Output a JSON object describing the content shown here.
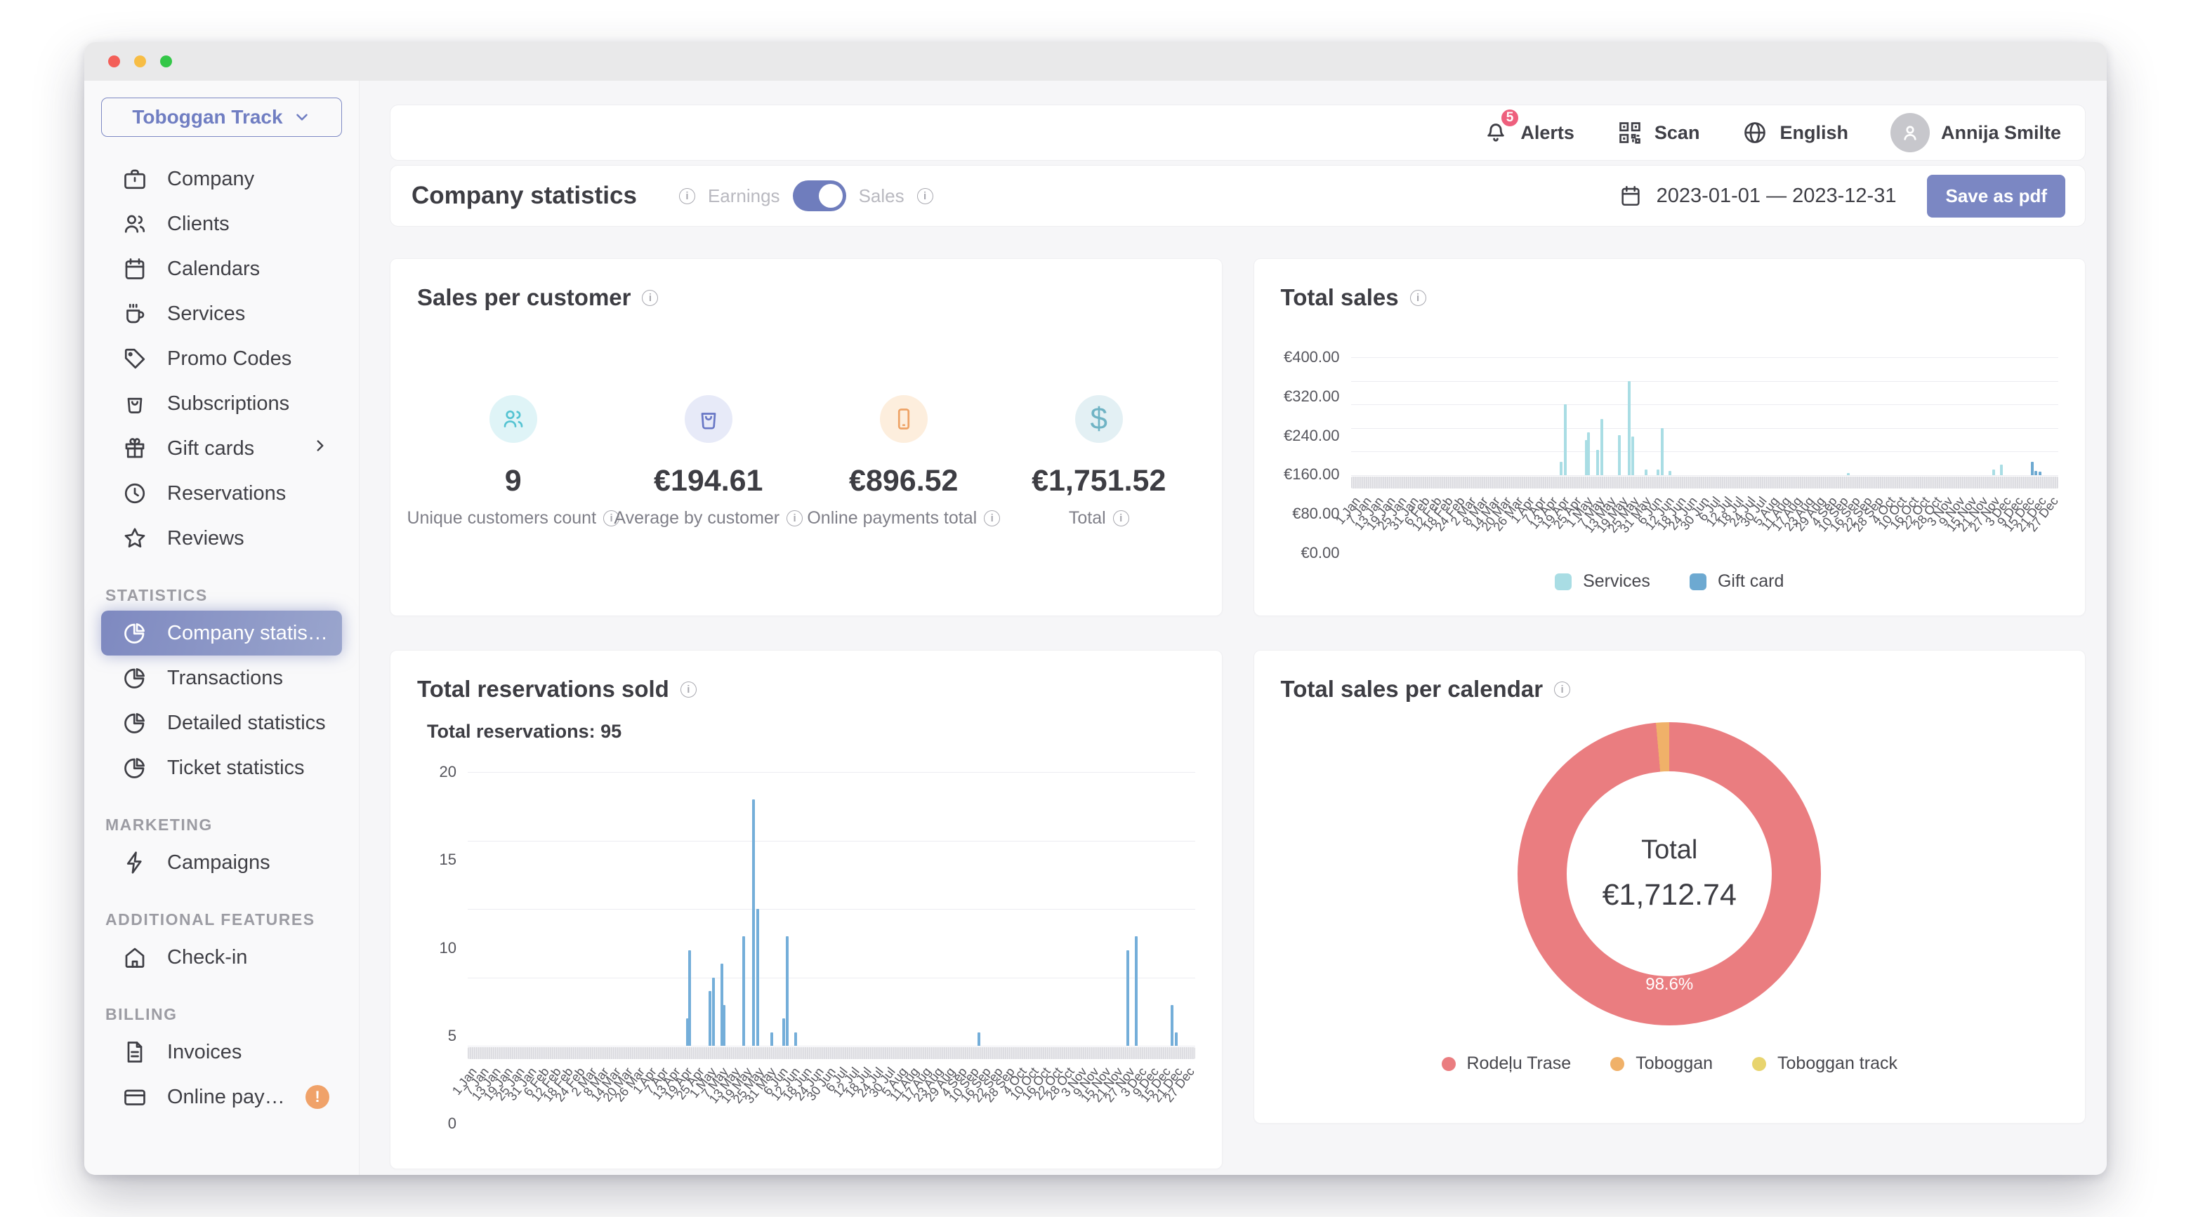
{
  "theme": {
    "accent": "#7b87c3",
    "selected_gradient": [
      "#7e89c0",
      "#9aa5cd"
    ],
    "alert_badge": "#ee5f7d",
    "warning_badge": "#f0a269"
  },
  "sidebar": {
    "company_selector": {
      "label": "Toboggan Track"
    },
    "items": [
      {
        "label": "Company"
      },
      {
        "label": "Clients"
      },
      {
        "label": "Calendars"
      },
      {
        "label": "Services"
      },
      {
        "label": "Promo Codes"
      },
      {
        "label": "Subscriptions"
      },
      {
        "label": "Gift cards",
        "has_chevron": true
      },
      {
        "label": "Reservations"
      },
      {
        "label": "Reviews"
      }
    ],
    "sections": [
      {
        "label": "STATISTICS",
        "items": [
          {
            "label": "Company statistics",
            "active": true
          },
          {
            "label": "Transactions"
          },
          {
            "label": "Detailed statistics"
          },
          {
            "label": "Ticket statistics"
          }
        ]
      },
      {
        "label": "MARKETING",
        "items": [
          {
            "label": "Campaigns"
          }
        ]
      },
      {
        "label": "ADDITIONAL FEATURES",
        "items": [
          {
            "label": "Check-in"
          }
        ]
      },
      {
        "label": "BILLING",
        "items": [
          {
            "label": "Invoices"
          },
          {
            "label": "Online paymen…",
            "badge": "!"
          }
        ]
      }
    ]
  },
  "topbar": {
    "alerts": {
      "label": "Alerts",
      "count": "5"
    },
    "scan_label": "Scan",
    "language": "English",
    "user_name": "Annija Smilte"
  },
  "page_header": {
    "title": "Company statistics",
    "earnings_label": "Earnings",
    "sales_label": "Sales",
    "date_range": "2023-01-01 — 2023-12-31",
    "save_button": "Save as pdf"
  },
  "cards": {
    "sales_per_customer": {
      "title": "Sales per customer",
      "stats": [
        {
          "value": "9",
          "label": "Unique customers count",
          "icon": "users-icon"
        },
        {
          "value": "€194.61",
          "label": "Average by customer",
          "icon": "bag-icon"
        },
        {
          "value": "€896.52",
          "label": "Online payments total",
          "icon": "smartphone-icon"
        },
        {
          "value": "€1,751.52",
          "label": "Total",
          "icon": "dollar-icon"
        }
      ]
    }
  },
  "chart_data": [
    {
      "id": "total_sales",
      "type": "bar",
      "title": "Total sales",
      "ylabel": "EUR",
      "y_ticks": [
        "€400.00",
        "€320.00",
        "€240.00",
        "€160.00",
        "€80.00",
        "€0.00"
      ],
      "ymax": 400,
      "x_domain_days": 365,
      "x_tick_step_days": 6,
      "months": [
        "Jan",
        "Feb",
        "Mar",
        "Apr",
        "May",
        "Jun",
        "Jul",
        "Aug",
        "Sep",
        "Oct",
        "Nov",
        "Dec"
      ],
      "month_days": [
        31,
        28,
        31,
        30,
        31,
        30,
        31,
        31,
        30,
        31,
        30,
        31
      ],
      "grid": true,
      "legend_position": "bottom",
      "legend": [
        {
          "label": "Services",
          "color": "#a9dde4"
        },
        {
          "label": "Gift card",
          "color": "#6da9d1"
        }
      ],
      "series": [
        {
          "name": "Services",
          "color": "#a9dde4",
          "points": [
            [
              108,
              45
            ],
            [
              110,
              240
            ],
            [
              121,
              120
            ],
            [
              122,
              145
            ],
            [
              127,
              85
            ],
            [
              129,
              190
            ],
            [
              138,
              135
            ],
            [
              143,
              320
            ],
            [
              145,
              130
            ],
            [
              152,
              20
            ],
            [
              158,
              20
            ],
            [
              160,
              160
            ],
            [
              164,
              15
            ],
            [
              256,
              8
            ],
            [
              331,
              20
            ],
            [
              335,
              35
            ]
          ]
        },
        {
          "name": "Gift card",
          "color": "#6da9d1",
          "points": [
            [
              351,
              45
            ],
            [
              353,
              15
            ],
            [
              355,
              12
            ]
          ]
        }
      ]
    },
    {
      "id": "total_reservations_sold",
      "type": "bar",
      "title": "Total reservations sold",
      "subtitle": "Total reservations: 95",
      "y_ticks": [
        "20",
        "15",
        "10",
        "5",
        "0"
      ],
      "ymax": 20,
      "x_domain_days": 365,
      "x_tick_step_days": 6,
      "months": [
        "Jan",
        "Feb",
        "Mar",
        "Apr",
        "May",
        "Jun",
        "Jul",
        "Aug",
        "Sep",
        "Oct",
        "Nov",
        "Dec"
      ],
      "month_days": [
        31,
        28,
        31,
        30,
        31,
        30,
        31,
        31,
        30,
        31,
        30,
        31
      ],
      "grid": true,
      "series": [
        {
          "name": "Reservations",
          "color": "#74aed9",
          "points": [
            [
              110,
              2
            ],
            [
              111,
              7
            ],
            [
              121,
              4
            ],
            [
              123,
              5
            ],
            [
              127,
              6
            ],
            [
              128,
              3
            ],
            [
              138,
              8
            ],
            [
              143,
              18
            ],
            [
              145,
              10
            ],
            [
              152,
              1
            ],
            [
              158,
              2
            ],
            [
              160,
              8
            ],
            [
              164,
              1
            ],
            [
              256,
              1
            ],
            [
              331,
              7
            ],
            [
              335,
              8
            ],
            [
              353,
              3
            ],
            [
              355,
              1
            ]
          ]
        }
      ]
    },
    {
      "id": "total_sales_per_calendar",
      "type": "pie",
      "title": "Total sales per calendar",
      "center_label": "Total",
      "center_value": "€1,712.74",
      "slice_label": "98.6%",
      "legend_position": "bottom",
      "segments": [
        {
          "label": "Rodeļu Trase",
          "color": "#ea7d80",
          "pct": 98.6
        },
        {
          "label": "Toboggan",
          "color": "#f0b169",
          "pct": 1.4
        },
        {
          "label": "Toboggan track",
          "color": "#e8d46e",
          "pct": 0
        }
      ]
    }
  ]
}
